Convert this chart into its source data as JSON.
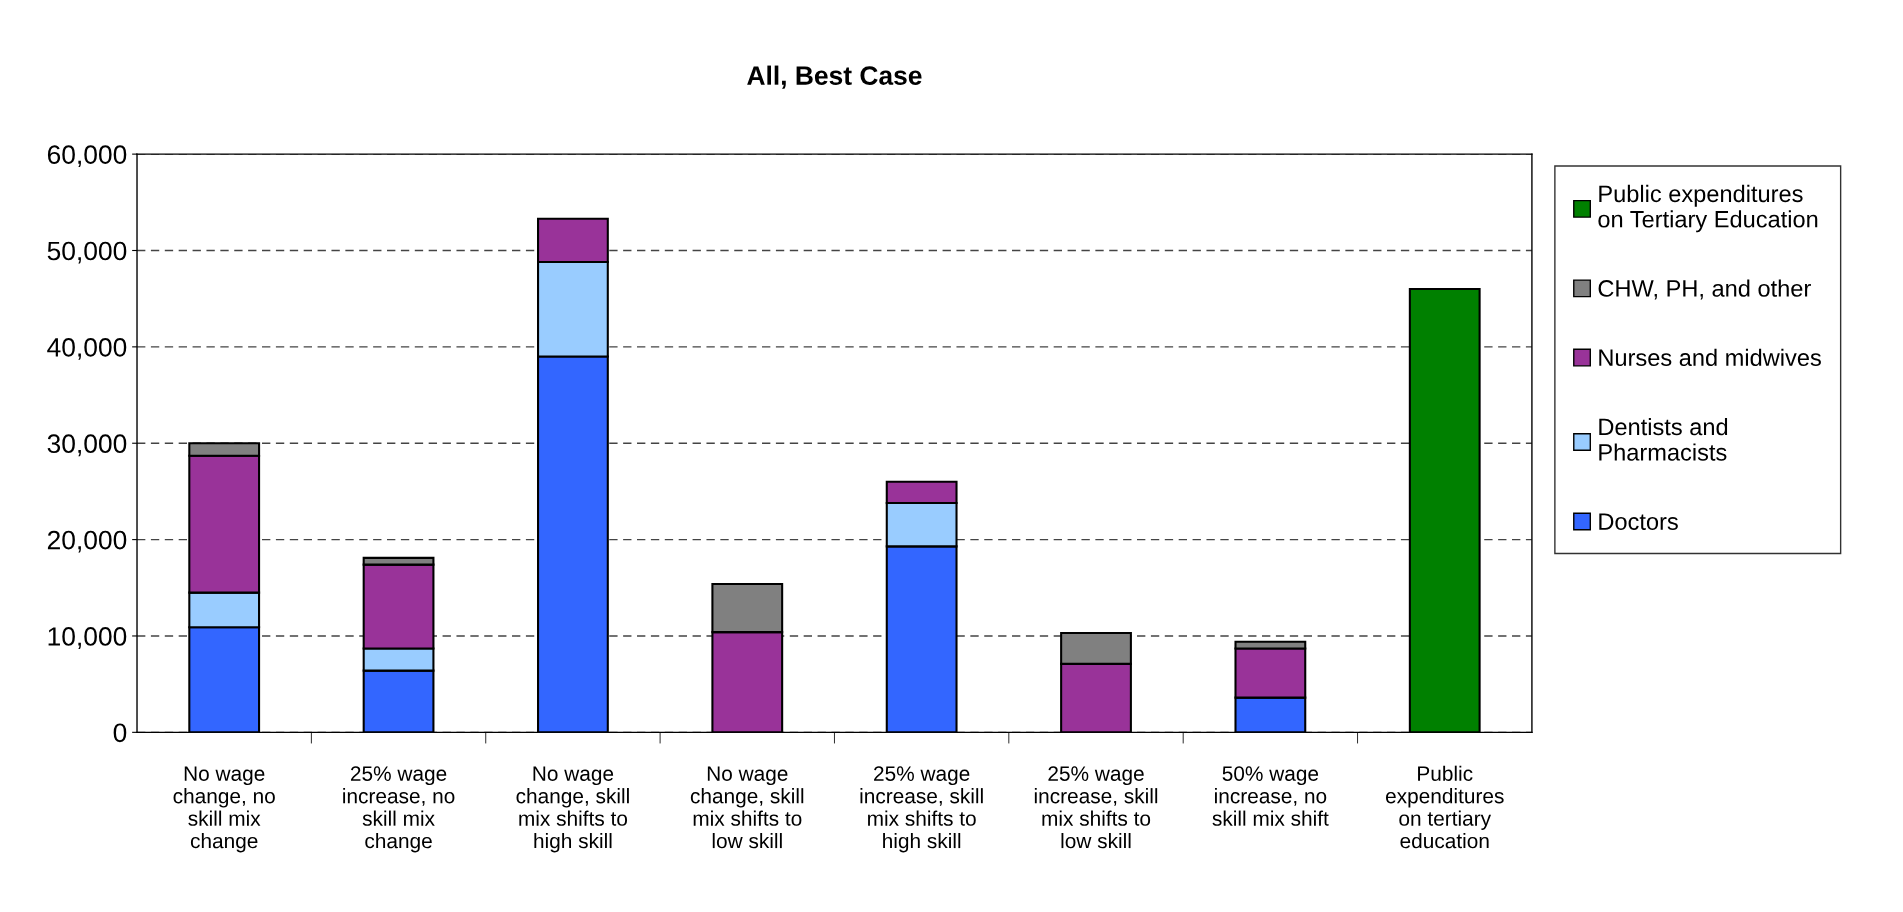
{
  "chart_data": {
    "type": "bar",
    "title": "All, Best Case",
    "stacked": true,
    "categories": [
      "No wage\nchange, no\nskill mix\nchange",
      "25% wage\nincrease, no\nskill mix\nchange",
      "No wage\nchange, skill\nmix shifts to\nhigh skill",
      "No wage\nchange, skill\nmix shifts to\nlow skill",
      "25% wage\nincrease, skill\nmix shifts to\nhigh skill",
      "25% wage\nincrease, skill\nmix shifts to\nlow skill",
      "50% wage\nincrease, no\nskill mix shift",
      "Public\nexpenditures\non tertiary\neducation"
    ],
    "series": [
      {
        "name": "Doctors",
        "color": "#3366ff",
        "values": [
          10900,
          6400,
          39000,
          null,
          19300,
          null,
          3600,
          null
        ]
      },
      {
        "name": "Dentists and\nPharmacists",
        "color": "#99ccff",
        "values": [
          3600,
          2300,
          9800,
          null,
          4500,
          null,
          null,
          null
        ]
      },
      {
        "name": "Nurses and midwives",
        "color": "#993399",
        "values": [
          14200,
          8700,
          4500,
          10400,
          2200,
          7100,
          5100,
          null
        ]
      },
      {
        "name": "CHW, PH, and other",
        "color": "#808080",
        "values": [
          1300,
          700,
          null,
          5000,
          null,
          3200,
          700,
          null
        ]
      },
      {
        "name": "Public expenditures\non Tertiary Education",
        "color": "#008000",
        "values": [
          null,
          null,
          null,
          null,
          null,
          null,
          null,
          46000
        ]
      }
    ],
    "ylim": [
      0,
      60000
    ],
    "yticks": [
      {
        "value": 0,
        "label": "0"
      },
      {
        "value": 10000,
        "label": "10,000"
      },
      {
        "value": 20000,
        "label": "20,000"
      },
      {
        "value": 30000,
        "label": "30,000"
      },
      {
        "value": 40000,
        "label": "40,000"
      },
      {
        "value": 50000,
        "label": "50,000"
      },
      {
        "value": 60000,
        "label": "60,000"
      }
    ],
    "grid": "y",
    "legend": "right"
  }
}
